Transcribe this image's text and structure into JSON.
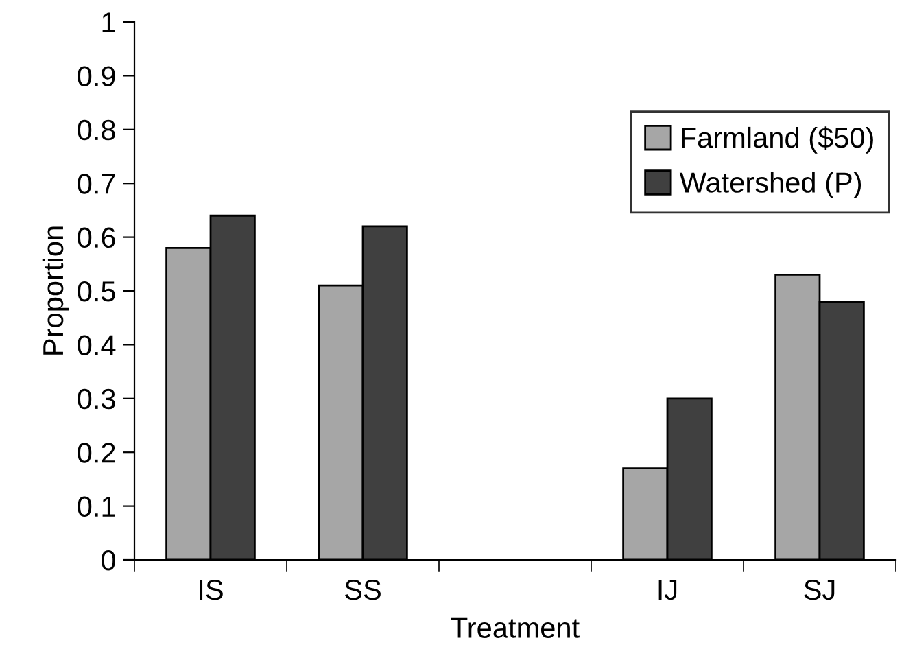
{
  "chart_data": {
    "type": "bar",
    "xlabel": "Treatment",
    "ylabel": "Proportion",
    "categories": [
      "IS",
      "SS",
      null,
      "IJ",
      "SJ"
    ],
    "series": [
      {
        "name": "Farmland ($50)",
        "color": "#a6a6a6",
        "values": [
          0.58,
          0.51,
          null,
          0.17,
          0.53
        ]
      },
      {
        "name": "Watershed (P)",
        "color": "#404040",
        "values": [
          0.64,
          0.62,
          null,
          0.3,
          0.48
        ]
      }
    ],
    "ylim": [
      0,
      1
    ],
    "yticks": [
      0,
      0.1,
      0.2,
      0.3,
      0.4,
      0.5,
      0.6,
      0.7,
      0.8,
      0.9,
      1
    ],
    "grid": false,
    "legend": "top right"
  }
}
